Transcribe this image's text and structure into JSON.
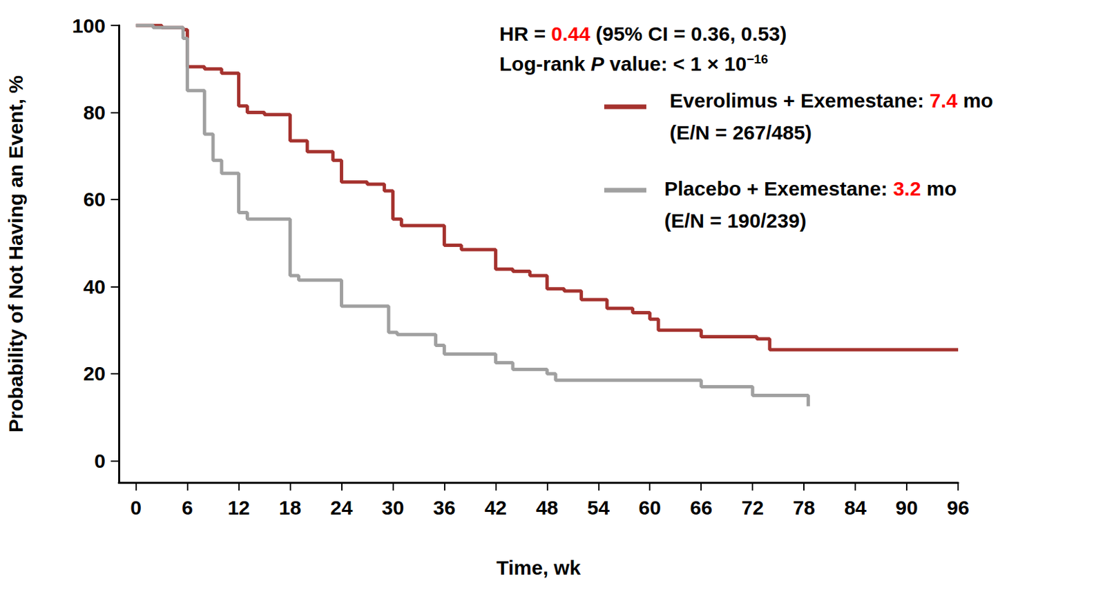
{
  "chart_data": {
    "type": "line",
    "line_style": "step",
    "grid": false,
    "x_label": "Time, wk",
    "y_label": "Probability of Not Having an Event, %",
    "xlim": [
      -2,
      96
    ],
    "xticks": [
      0,
      6,
      12,
      18,
      24,
      30,
      36,
      42,
      48,
      54,
      60,
      66,
      72,
      78,
      84,
      90,
      96
    ],
    "ylim": [
      -5,
      100
    ],
    "yticks": [
      0,
      20,
      40,
      60,
      80,
      100
    ],
    "annotations": [
      {
        "text": "HR = 0.44 (95% CI = 0.36, 0.53)",
        "highlight": "0.44"
      },
      {
        "text": "Log-rank P value: < 1 × 10",
        "italic": "P",
        "superscript": "−16"
      }
    ],
    "series": [
      {
        "name": "Everolimus + Exemestane: ",
        "median": "7.4",
        "median_unit": " mo",
        "events_label": "(E/N = 267/485)",
        "color": "#a5322e",
        "x": [
          0,
          3,
          5.5,
          6,
          8,
          10,
          12,
          13,
          15,
          18,
          20,
          23,
          24,
          27,
          29,
          30,
          31,
          36,
          38,
          42,
          44,
          46,
          48,
          50,
          52,
          55,
          58,
          60,
          61,
          66,
          70,
          72.5,
          74,
          96
        ],
        "values": [
          100,
          99.5,
          99,
          90.5,
          90,
          89,
          81.5,
          80,
          79.5,
          73.5,
          71,
          69,
          64,
          63.5,
          62,
          55.5,
          54,
          49.5,
          48.5,
          44,
          43.5,
          42.5,
          39.5,
          39,
          37,
          35,
          34,
          32.5,
          30,
          28.5,
          28.5,
          28,
          25.5,
          25.5
        ]
      },
      {
        "name": "Placebo + Exemestane: ",
        "median": "3.2",
        "median_unit": " mo",
        "events_label": "(E/N = 190/239)",
        "color": "#a0a0a0",
        "x": [
          0,
          2,
          5.5,
          6,
          8,
          9,
          10,
          12,
          13,
          18,
          19,
          24,
          29.5,
          30.5,
          35,
          36,
          42,
          44,
          48,
          49,
          66,
          72,
          78.5
        ],
        "values": [
          100,
          99.5,
          97,
          85,
          75,
          69,
          66,
          57,
          55.5,
          42.5,
          41.5,
          35.5,
          29.5,
          29,
          26.5,
          24.5,
          22.5,
          21,
          20,
          18.5,
          17,
          15,
          12.5
        ]
      }
    ]
  }
}
